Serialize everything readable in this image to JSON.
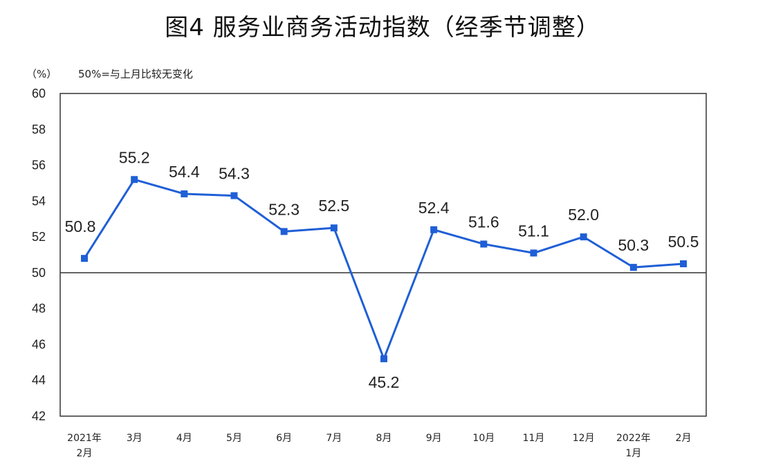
{
  "chart_data": {
    "type": "line",
    "title": "图4  服务业商务活动指数（经季节调整）",
    "ylabel": "（%）",
    "note": "50%=与上月比较无变化",
    "ylim": [
      42,
      60
    ],
    "yticks": [
      42,
      44,
      46,
      48,
      50,
      52,
      54,
      56,
      58,
      60
    ],
    "reference_line": 50,
    "categories": [
      [
        "2021年",
        "2月"
      ],
      [
        "3月"
      ],
      [
        "4月"
      ],
      [
        "5月"
      ],
      [
        "6月"
      ],
      [
        "7月"
      ],
      [
        "8月"
      ],
      [
        "9月"
      ],
      [
        "10月"
      ],
      [
        "11月"
      ],
      [
        "12月"
      ],
      [
        "2022年",
        "1月"
      ],
      [
        "2月"
      ]
    ],
    "series": [
      {
        "values": [
          50.8,
          55.2,
          54.4,
          54.3,
          52.3,
          52.5,
          45.2,
          52.4,
          51.6,
          51.1,
          52.0,
          50.3,
          50.5
        ],
        "labels": [
          "50.8",
          "55.2",
          "54.4",
          "54.3",
          "52.3",
          "52.5",
          "45.2",
          "52.4",
          "51.6",
          "51.1",
          "52.0",
          "50.3",
          "50.5"
        ],
        "color": "#1f5fd6"
      }
    ],
    "grid": false,
    "legend": "none"
  }
}
